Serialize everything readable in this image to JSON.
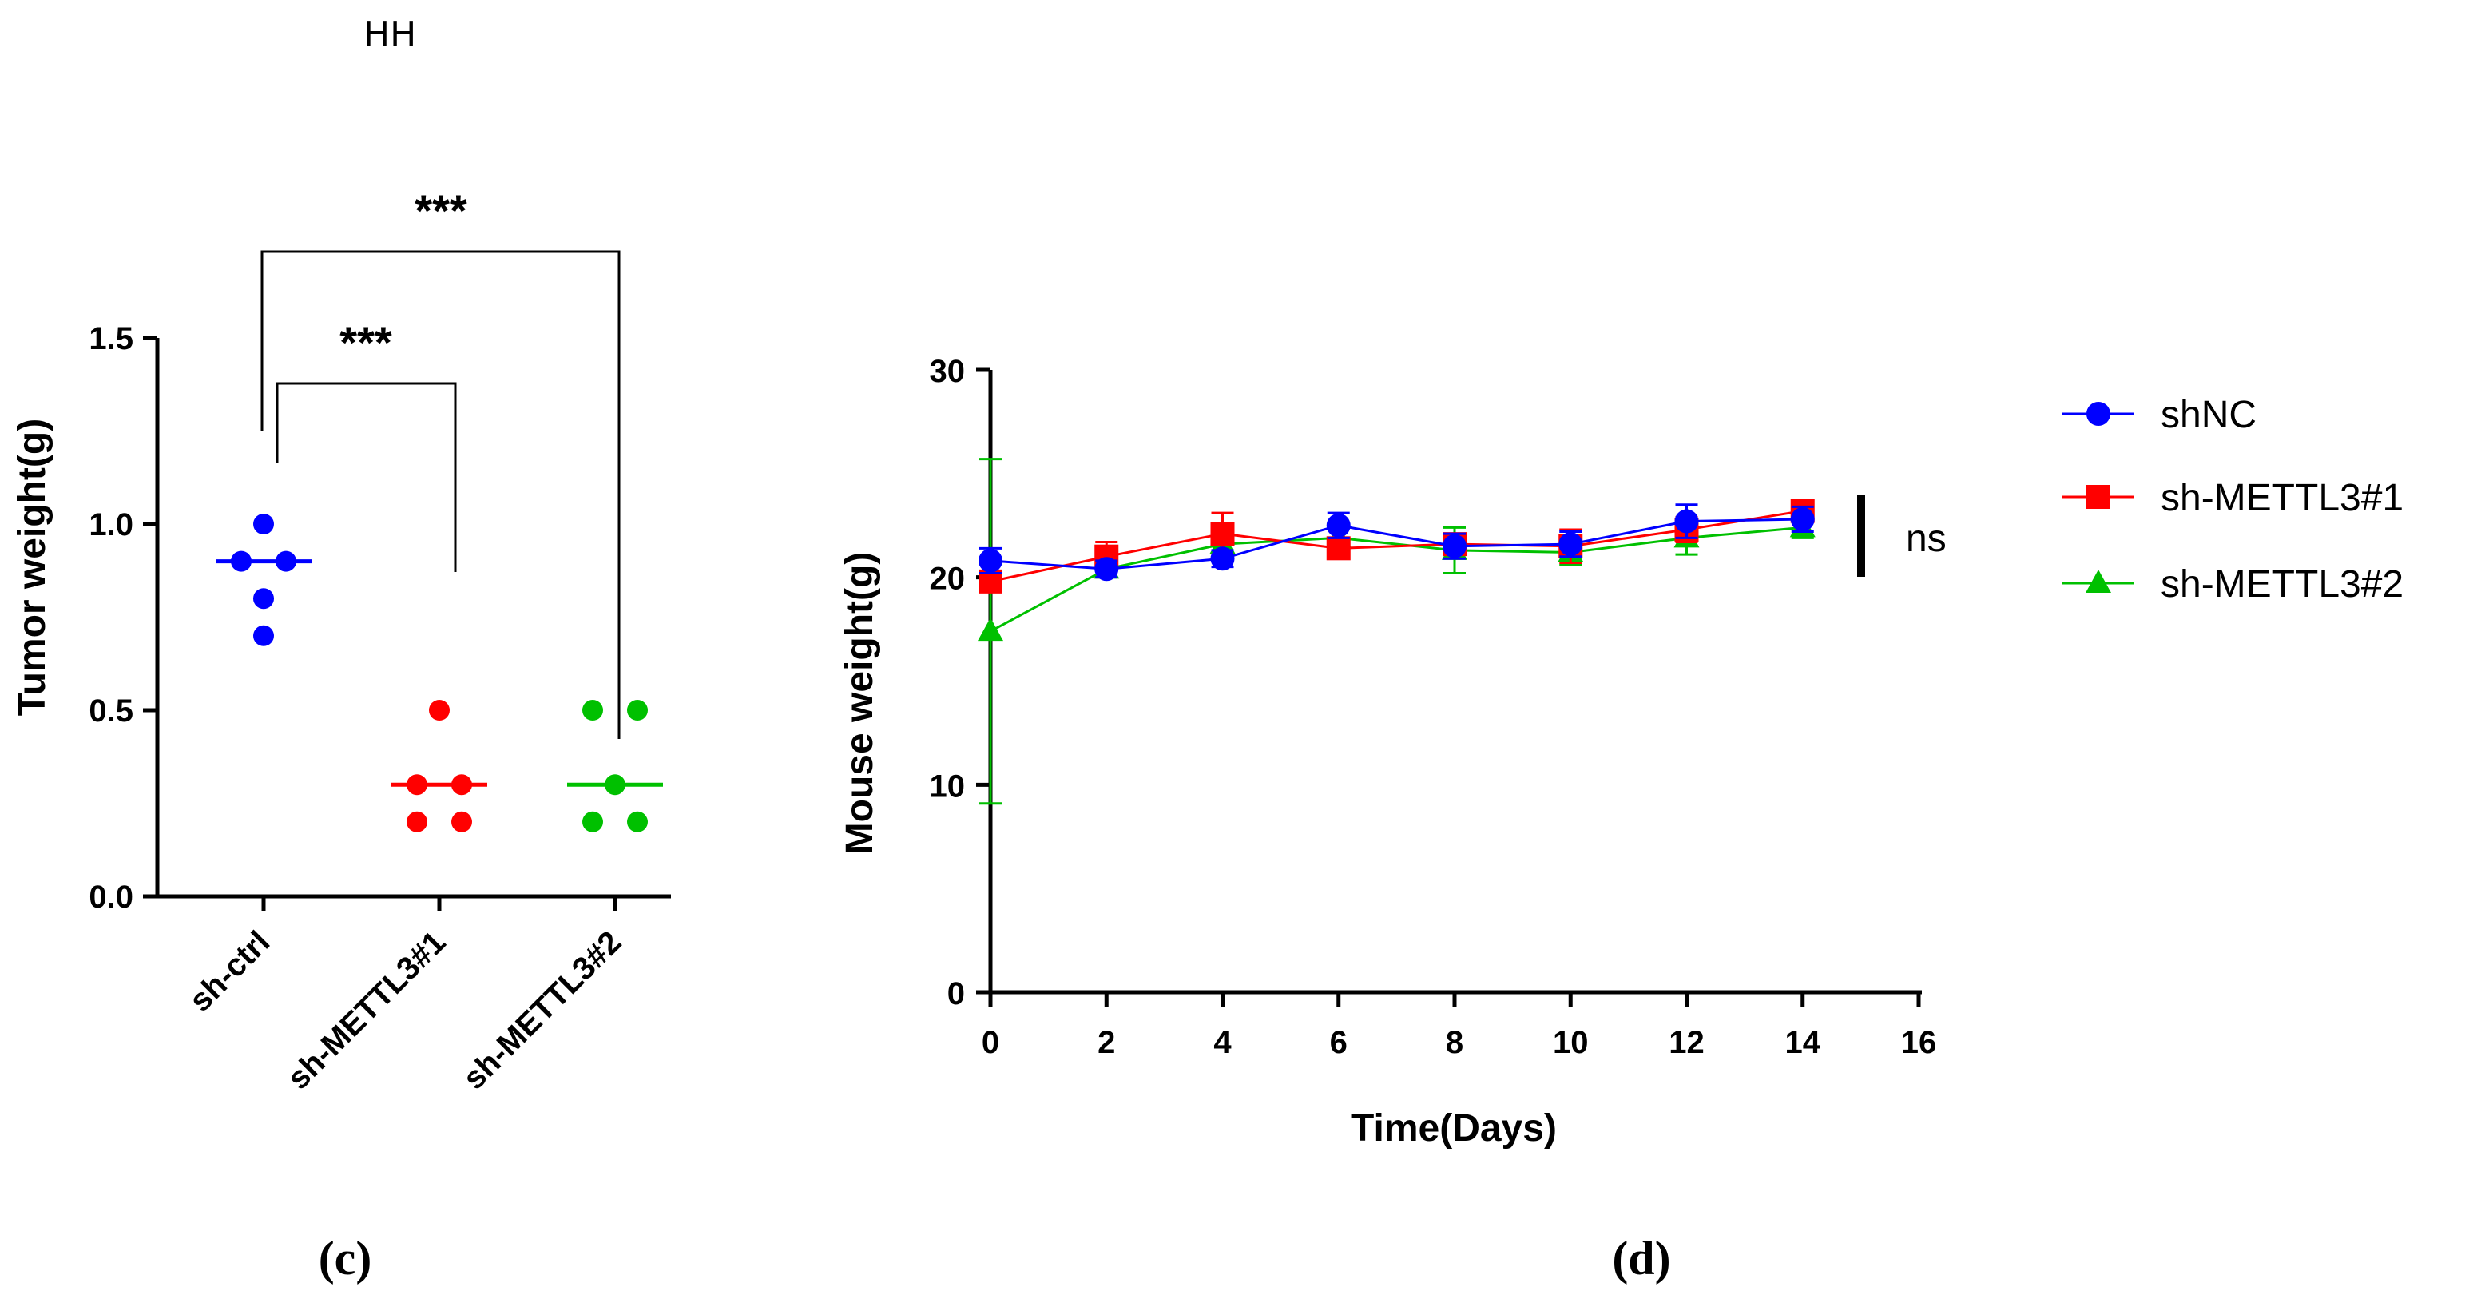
{
  "header_mark": "HH",
  "chart_data": [
    {
      "panel": "c",
      "type": "scatter",
      "ylabel": "Tumor weight(g)",
      "xlabel": "",
      "ylim": [
        0,
        1.5
      ],
      "yticks": [
        "0.0",
        "0.5",
        "1.0",
        "1.5"
      ],
      "categories": [
        "sh-ctrl",
        "sh-METTL3#1",
        "sh-METTL3#2"
      ],
      "series": [
        {
          "name": "sh-ctrl",
          "color": "#0000ff",
          "points": [
            1.0,
            0.9,
            0.9,
            0.8,
            0.7
          ],
          "median": 0.9
        },
        {
          "name": "sh-METTL3#1",
          "color": "#ff0000",
          "points": [
            0.5,
            0.3,
            0.3,
            0.2,
            0.2
          ],
          "median": 0.3
        },
        {
          "name": "sh-METTL3#2",
          "color": "#00c000",
          "points": [
            0.5,
            0.5,
            0.3,
            0.2,
            0.2
          ],
          "median": 0.3
        }
      ],
      "significance": [
        {
          "from": "sh-ctrl",
          "to": "sh-METTL3#1",
          "label": "***"
        },
        {
          "from": "sh-ctrl",
          "to": "sh-METTL3#2",
          "label": "***"
        }
      ]
    },
    {
      "panel": "d",
      "type": "line",
      "xlabel": "Time(Days)",
      "ylabel": "Mouse weight(g)",
      "xlim": [
        0,
        16
      ],
      "ylim": [
        0,
        30
      ],
      "xticks": [
        "0",
        "2",
        "4",
        "6",
        "8",
        "10",
        "12",
        "14",
        "16"
      ],
      "yticks": [
        "0",
        "10",
        "20",
        "30"
      ],
      "x": [
        0,
        2,
        4,
        6,
        8,
        10,
        12,
        14
      ],
      "series": [
        {
          "name": "shNC",
          "color": "#0000ff",
          "marker": "circle",
          "values": [
            20.8,
            20.4,
            20.9,
            22.5,
            21.5,
            21.6,
            22.7,
            22.8
          ],
          "errors": [
            0.6,
            0.4,
            0.4,
            0.6,
            0.6,
            0.6,
            0.8,
            0.6
          ]
        },
        {
          "name": "sh-METTL3#1",
          "color": "#ff0000",
          "marker": "square",
          "values": [
            19.8,
            21.0,
            22.1,
            21.4,
            21.6,
            21.5,
            22.3,
            23.2
          ],
          "errors": [
            0.3,
            0.7,
            1.0,
            0.5,
            0.5,
            0.8,
            0.6,
            0.5
          ]
        },
        {
          "name": "sh-METTL3#2",
          "color": "#00c000",
          "marker": "triangle",
          "values": [
            17.4,
            20.4,
            21.6,
            21.9,
            21.3,
            21.2,
            21.9,
            22.4
          ],
          "errors": [
            8.3,
            0.4,
            0.4,
            0.5,
            1.1,
            0.6,
            0.8,
            0.5
          ]
        }
      ],
      "annotation": "ns"
    }
  ],
  "panel_labels": [
    "(c)",
    "(d)"
  ]
}
